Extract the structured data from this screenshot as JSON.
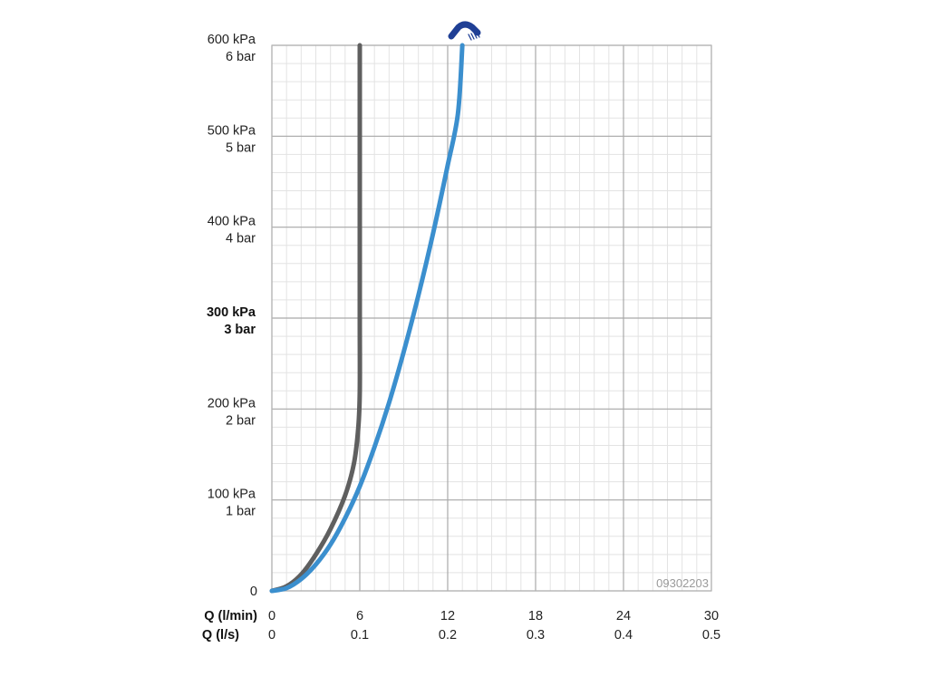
{
  "chart_data": {
    "type": "line",
    "title": "",
    "code": "09302203",
    "y_axis": {
      "range_kpa": [
        0,
        600
      ],
      "ticks": [
        {
          "value": 0,
          "kpa": "0",
          "bar": "",
          "bold": false
        },
        {
          "value": 100,
          "kpa": "100 kPa",
          "bar": "1 bar",
          "bold": false
        },
        {
          "value": 200,
          "kpa": "200 kPa",
          "bar": "2 bar",
          "bold": false
        },
        {
          "value": 300,
          "kpa": "300 kPa",
          "bar": "3 bar",
          "bold": true
        },
        {
          "value": 400,
          "kpa": "400 kPa",
          "bar": "4 bar",
          "bold": false
        },
        {
          "value": 500,
          "kpa": "500 kPa",
          "bar": "5 bar",
          "bold": false
        },
        {
          "value": 600,
          "kpa": "600 kPa",
          "bar": "6 bar",
          "bold": false
        }
      ]
    },
    "x_axis": {
      "range_lmin": [
        0,
        30
      ],
      "label_lmin": "Q (l/min)",
      "label_ls": "Q (l/s)",
      "ticks": [
        {
          "value": 0,
          "lmin": "0",
          "ls": "0"
        },
        {
          "value": 6,
          "lmin": "6",
          "ls": "0.1"
        },
        {
          "value": 12,
          "lmin": "12",
          "ls": "0.2"
        },
        {
          "value": 18,
          "lmin": "18",
          "ls": "0.3"
        },
        {
          "value": 24,
          "lmin": "24",
          "ls": "0.4"
        },
        {
          "value": 30,
          "lmin": "30",
          "ls": "0.5"
        }
      ]
    },
    "grid": true,
    "series": [
      {
        "color": "#5f5f5f",
        "points": [
          [
            0,
            0
          ],
          [
            1,
            5
          ],
          [
            2,
            18
          ],
          [
            3,
            40
          ],
          [
            4,
            68
          ],
          [
            5,
            105
          ],
          [
            5.6,
            140
          ],
          [
            5.9,
            180
          ],
          [
            6.0,
            220
          ],
          [
            6.0,
            300
          ],
          [
            6.0,
            400
          ],
          [
            6.0,
            500
          ],
          [
            6.0,
            600
          ]
        ]
      },
      {
        "color": "#3b8fce",
        "points": [
          [
            0,
            0
          ],
          [
            1,
            3
          ],
          [
            2,
            13
          ],
          [
            3,
            29
          ],
          [
            4,
            51
          ],
          [
            5,
            80
          ],
          [
            6,
            115
          ],
          [
            7,
            158
          ],
          [
            8,
            207
          ],
          [
            9,
            263
          ],
          [
            10,
            325
          ],
          [
            11,
            393
          ],
          [
            12,
            468
          ],
          [
            12.7,
            525
          ],
          [
            13.0,
            600
          ]
        ]
      }
    ],
    "icon": "hand-shower-icon",
    "icon_color": "#1f3f95"
  }
}
